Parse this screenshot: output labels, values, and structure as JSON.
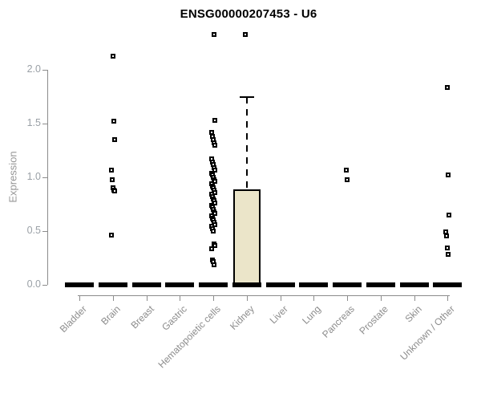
{
  "chart_data": {
    "type": "boxplot",
    "title": "ENSG00000207453 - U6",
    "ylabel": "Expression",
    "xlabel": "",
    "ylim": [
      0,
      2.4
    ],
    "yticks": [
      0.0,
      0.5,
      1.0,
      1.5,
      2.0
    ],
    "grid": false,
    "legend": false,
    "categories": [
      "Bladder",
      "Brain",
      "Breast",
      "Gastric",
      "Hematopoietic cells",
      "Kidney",
      "Liver",
      "Lung",
      "Pancreas",
      "Prostate",
      "Skin",
      "Unknown / Other"
    ],
    "boxes": [
      {
        "category": "Bladder",
        "whisker_low": 0,
        "q1": 0,
        "median": 0,
        "q3": 0,
        "whisker_high": 0,
        "outliers": []
      },
      {
        "category": "Brain",
        "whisker_low": 0,
        "q1": 0,
        "median": 0,
        "q3": 0,
        "whisker_high": 0,
        "outliers": [
          2.13,
          1.52,
          1.35,
          1.07,
          0.98,
          0.9,
          0.88,
          0.87,
          0.46
        ]
      },
      {
        "category": "Breast",
        "whisker_low": 0,
        "q1": 0,
        "median": 0,
        "q3": 0,
        "whisker_high": 0,
        "outliers": []
      },
      {
        "category": "Gastric",
        "whisker_low": 0,
        "q1": 0,
        "median": 0,
        "q3": 0,
        "whisker_high": 0,
        "outliers": []
      },
      {
        "category": "Hematopoietic cells",
        "whisker_low": 0,
        "q1": 0,
        "median": 0,
        "q3": 0,
        "whisker_high": 0,
        "outliers": [
          2.33,
          1.53,
          1.42,
          1.38,
          1.35,
          1.32,
          1.3,
          1.17,
          1.14,
          1.12,
          1.09,
          1.07,
          1.04,
          1.02,
          1.0,
          0.98,
          0.96,
          0.94,
          0.92,
          0.9,
          0.88,
          0.86,
          0.84,
          0.82,
          0.8,
          0.78,
          0.76,
          0.74,
          0.72,
          0.7,
          0.68,
          0.66,
          0.64,
          0.62,
          0.6,
          0.58,
          0.56,
          0.54,
          0.52,
          0.5,
          0.38,
          0.36,
          0.33,
          0.23,
          0.21,
          0.18
        ]
      },
      {
        "category": "Kidney",
        "whisker_low": 0,
        "q1": 0,
        "median": 0,
        "q3": 0.89,
        "whisker_high": 1.75,
        "outliers": [
          2.33
        ]
      },
      {
        "category": "Liver",
        "whisker_low": 0,
        "q1": 0,
        "median": 0,
        "q3": 0,
        "whisker_high": 0,
        "outliers": []
      },
      {
        "category": "Lung",
        "whisker_low": 0,
        "q1": 0,
        "median": 0,
        "q3": 0,
        "whisker_high": 0,
        "outliers": []
      },
      {
        "category": "Pancreas",
        "whisker_low": 0,
        "q1": 0,
        "median": 0,
        "q3": 0,
        "whisker_high": 0,
        "outliers": [
          1.07,
          0.98
        ]
      },
      {
        "category": "Prostate",
        "whisker_low": 0,
        "q1": 0,
        "median": 0,
        "q3": 0,
        "whisker_high": 0,
        "outliers": []
      },
      {
        "category": "Skin",
        "whisker_low": 0,
        "q1": 0,
        "median": 0,
        "q3": 0,
        "whisker_high": 0,
        "outliers": []
      },
      {
        "category": "Unknown / Other",
        "whisker_low": 0,
        "q1": 0,
        "median": 0,
        "q3": 0,
        "whisker_high": 0,
        "outliers": [
          1.84,
          1.02,
          0.65,
          0.49,
          0.45,
          0.34,
          0.28
        ]
      }
    ],
    "colors": {
      "box_fill": "#EBE5C9",
      "box_border": "#000000",
      "median": "#000000",
      "whisker": "#000000",
      "outlier_border": "#000000",
      "outlier_fill": "#FFFFFF",
      "axis": "#8C8C8C",
      "y_tick_label": "#9AA0A6",
      "category_label": "#8C8C8C",
      "title": "#000000",
      "ylabel": "#969696"
    }
  }
}
